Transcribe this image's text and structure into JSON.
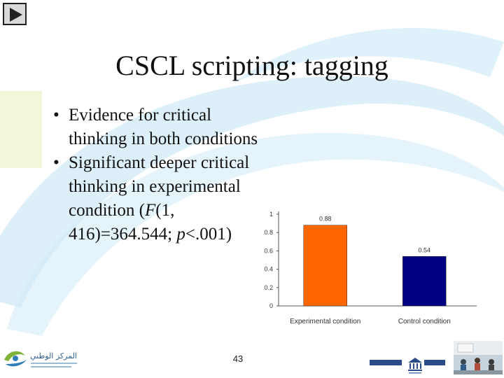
{
  "slide": {
    "title": "CSCL scripting: tagging",
    "bullets": [
      {
        "bullet": "•",
        "parts": [
          "Evidence for critical thinking in both conditions"
        ]
      },
      {
        "bullet": "•",
        "parts": [
          "Significant deeper critical thinking in experimental condition (",
          "F",
          "(1, 416)=364.544; ",
          "p",
          "<.001)"
        ]
      }
    ],
    "page_number": "43",
    "play_icon": "play-triangle-icon",
    "logo_left_text": "المركز الوطني"
  },
  "colors": {
    "experimental": "#ff6600",
    "control": "#000080",
    "swoosh": "#b8e0f2"
  },
  "chart_data": {
    "type": "bar",
    "categories": [
      "Experimental condition",
      "Control condition"
    ],
    "values": [
      0.88,
      0.54
    ],
    "value_labels": [
      "0.88",
      "0.54"
    ],
    "ylim": [
      0,
      1
    ],
    "yticks": [
      "0",
      "0.2",
      "0.4",
      "0.6",
      "0.8",
      "1"
    ],
    "title": "",
    "xlabel": "",
    "ylabel": "",
    "grid": false
  }
}
